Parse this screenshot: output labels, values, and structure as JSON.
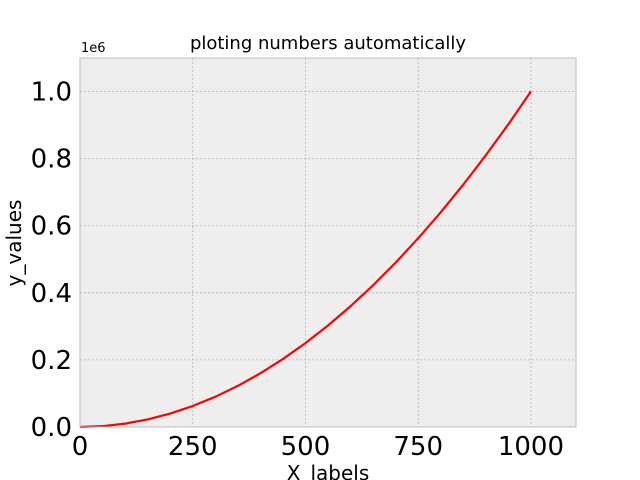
{
  "chart_data": {
    "type": "line",
    "title": "ploting numbers automatically",
    "xlabel": "X_labels",
    "ylabel": "y_values",
    "y_offset_label": "1e6",
    "xlim": [
      0,
      1100
    ],
    "ylim": [
      0,
      1.1
    ],
    "x_ticks": [
      0,
      250,
      500,
      750,
      1000
    ],
    "x_tick_labels": [
      "0",
      "250",
      "500",
      "750",
      "1000"
    ],
    "y_ticks": [
      0.0,
      0.2,
      0.4,
      0.6,
      0.8,
      1.0
    ],
    "y_tick_labels": [
      "0.0",
      "0.2",
      "0.4",
      "0.6",
      "0.8",
      "1.0"
    ],
    "grid": true,
    "series": [
      {
        "color": "#ff0000",
        "x": [
          0,
          50,
          100,
          150,
          200,
          250,
          300,
          350,
          400,
          450,
          500,
          550,
          600,
          650,
          700,
          750,
          800,
          850,
          900,
          950,
          1000
        ],
        "y": [
          0,
          0.0025,
          0.01,
          0.0225,
          0.04,
          0.0625,
          0.09,
          0.1225,
          0.16,
          0.2025,
          0.25,
          0.3025,
          0.36,
          0.4225,
          0.49,
          0.5625,
          0.64,
          0.7225,
          0.81,
          0.9025,
          1.0
        ]
      }
    ]
  }
}
